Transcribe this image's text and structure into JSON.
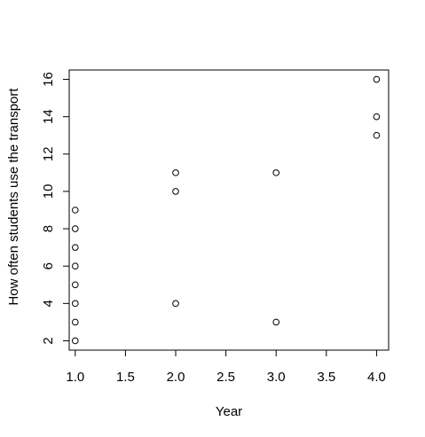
{
  "chart_data": {
    "type": "scatter",
    "title": "",
    "xlabel": "Year",
    "ylabel": "How often students use the transport",
    "xlim": [
      0.94,
      4.12
    ],
    "ylim": [
      1.5,
      16.5
    ],
    "xticks": [
      1.0,
      1.5,
      2.0,
      2.5,
      3.0,
      3.5,
      4.0
    ],
    "xtick_labels": [
      "1.0",
      "1.5",
      "2.0",
      "2.5",
      "3.0",
      "3.5",
      "4.0"
    ],
    "yticks": [
      2,
      4,
      6,
      8,
      10,
      12,
      14,
      16
    ],
    "ytick_labels": [
      "2",
      "4",
      "6",
      "8",
      "10",
      "12",
      "14",
      "16"
    ],
    "grid": false,
    "legend": "none",
    "marker": "open-circle",
    "points": [
      {
        "x": 1,
        "y": 2
      },
      {
        "x": 1,
        "y": 3
      },
      {
        "x": 1,
        "y": 4
      },
      {
        "x": 1,
        "y": 5
      },
      {
        "x": 1,
        "y": 6
      },
      {
        "x": 1,
        "y": 7
      },
      {
        "x": 1,
        "y": 8
      },
      {
        "x": 1,
        "y": 9
      },
      {
        "x": 2,
        "y": 4
      },
      {
        "x": 2,
        "y": 10
      },
      {
        "x": 2,
        "y": 11
      },
      {
        "x": 3,
        "y": 3
      },
      {
        "x": 3,
        "y": 11
      },
      {
        "x": 4,
        "y": 13
      },
      {
        "x": 4,
        "y": 14
      },
      {
        "x": 4,
        "y": 16
      }
    ]
  }
}
